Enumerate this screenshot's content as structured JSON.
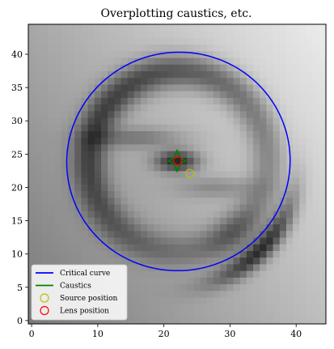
{
  "chart_data": {
    "type": "heatmap",
    "title": "Overplotting caustics, etc.",
    "xlabel": "",
    "ylabel": "",
    "xlim": [
      -0.5,
      44.5
    ],
    "ylim": [
      -0.5,
      44.5
    ],
    "xticks": [
      "0",
      "10",
      "20",
      "30",
      "40"
    ],
    "yticks": [
      "0",
      "5",
      "10",
      "15",
      "20",
      "25",
      "30",
      "35",
      "40"
    ],
    "image": {
      "grid_size": 45,
      "colormap": "gray",
      "description_features": {
        "arc_ring_center": [
          22.2,
          24.0
        ],
        "arc_ring_radius": 13.5
      }
    },
    "series": [
      {
        "name": "Critical curve",
        "kind": "line",
        "color": "#0000ff",
        "ellipse": {
          "cx": 22.2,
          "cy": 23.9,
          "rx": 16.9,
          "ry": 16.4,
          "angle_deg": 8
        }
      },
      {
        "name": "Caustics",
        "kind": "line",
        "color": "#008000",
        "astroid": {
          "cx": 22.0,
          "cy": 24.0,
          "ax": 1.4,
          "ay": 1.7
        }
      },
      {
        "name": "Source position",
        "kind": "marker",
        "color": "#bfbf00",
        "x": 23.9,
        "y": 22.1
      },
      {
        "name": "Lens position",
        "kind": "marker",
        "color": "#ff0000",
        "x": 22.1,
        "y": 24.0
      }
    ],
    "legend": {
      "placement": "bottom-left",
      "entries": [
        "Critical curve",
        "Caustics",
        "Source position",
        "Lens position"
      ]
    }
  }
}
